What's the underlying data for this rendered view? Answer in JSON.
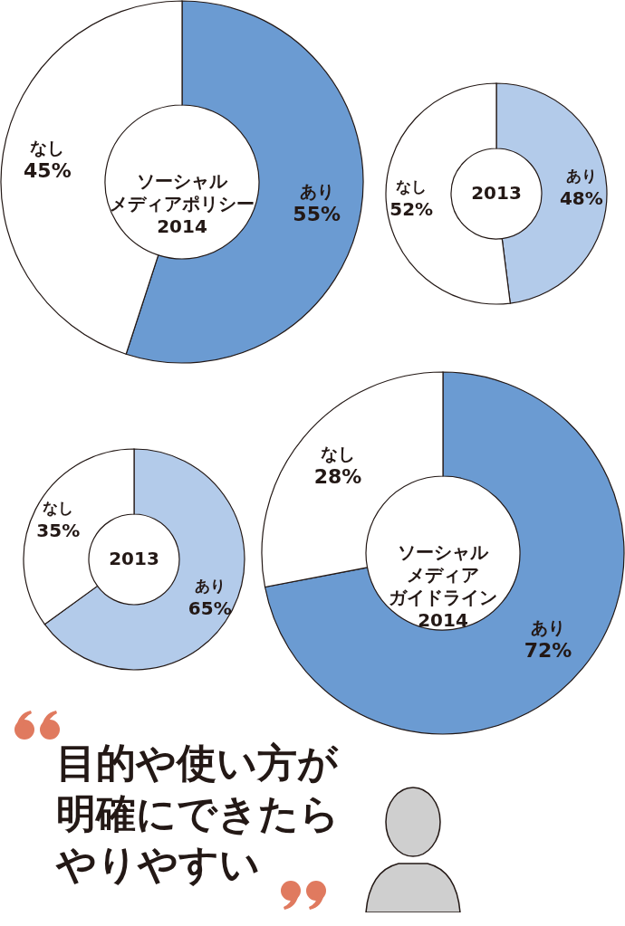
{
  "chart_data": [
    {
      "type": "donut",
      "title": "ソーシャルメディアポリシー2014",
      "categories": [
        "あり",
        "なし"
      ],
      "values": [
        55,
        45
      ],
      "value_labels": [
        "55%",
        "45%"
      ],
      "colors": [
        "#6b9bd2",
        "#ffffff"
      ]
    },
    {
      "type": "donut",
      "title": "2013",
      "categories": [
        "あり",
        "なし"
      ],
      "values": [
        48,
        52
      ],
      "value_labels": [
        "48%",
        "52%"
      ],
      "colors": [
        "#b3cbea",
        "#ffffff"
      ]
    },
    {
      "type": "donut",
      "title": "2013",
      "categories": [
        "あり",
        "なし"
      ],
      "values": [
        65,
        35
      ],
      "value_labels": [
        "65%",
        "35%"
      ],
      "colors": [
        "#b3cbea",
        "#ffffff"
      ]
    },
    {
      "type": "donut",
      "title": "ソーシャルメディアガイドライン2014",
      "categories": [
        "あり",
        "なし"
      ],
      "values": [
        72,
        28
      ],
      "value_labels": [
        "72%",
        "28%"
      ],
      "colors": [
        "#6b9bd2",
        "#ffffff"
      ]
    },
    {
      "type": "other",
      "annotations": [
        "目的や使い方が",
        "明確にできたら",
        "やりやすい"
      ]
    }
  ]
}
